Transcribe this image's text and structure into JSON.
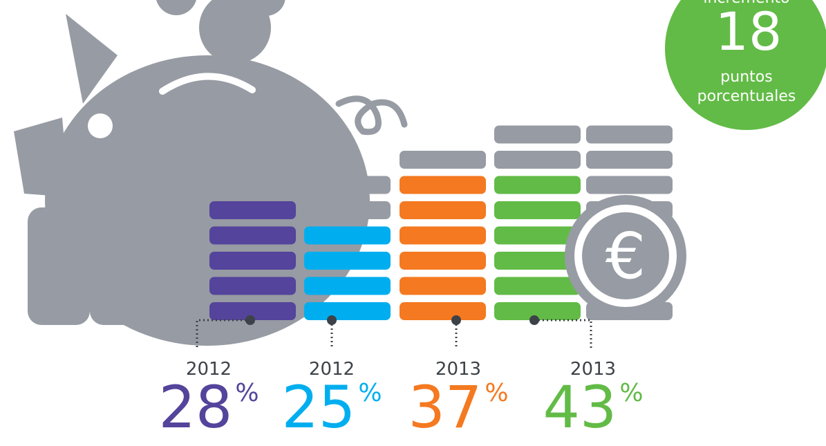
{
  "badge": {
    "label": "incremento",
    "value": 18,
    "caption": [
      "puntos",
      "porcentuales"
    ],
    "color": "#62bb46"
  },
  "percent_sign": "%",
  "items": [
    {
      "year": "2012",
      "value": 28,
      "color": "#54449b"
    },
    {
      "year": "2012",
      "value": 25,
      "color": "#00aeef"
    },
    {
      "year": "2013",
      "value": 37,
      "color": "#f47920"
    },
    {
      "year": "2013",
      "value": 43,
      "color": "#62bb46"
    }
  ]
}
